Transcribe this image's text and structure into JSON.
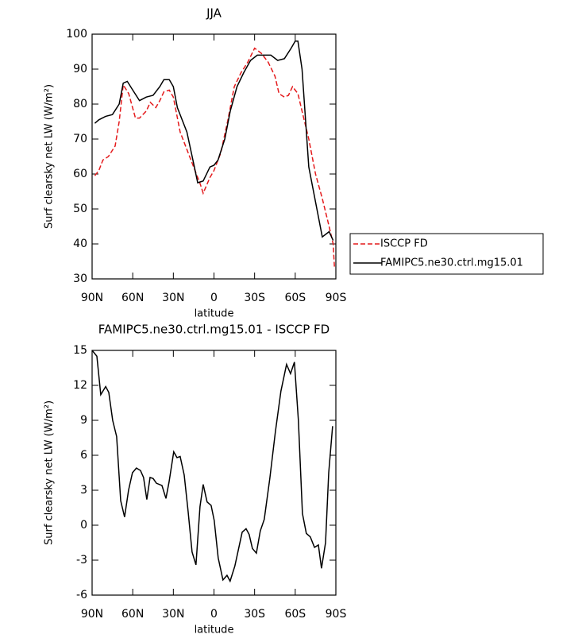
{
  "chart_data": [
    {
      "type": "line",
      "title": "JJA",
      "xlabel": "latitude",
      "ylabel": "Surf clearsky net LW (W/m²)",
      "xlim": [
        90,
        -90
      ],
      "xticks": [
        {
          "value": 90,
          "label": "90N"
        },
        {
          "value": 60,
          "label": "60N"
        },
        {
          "value": 30,
          "label": "30N"
        },
        0,
        {
          "value": -30,
          "label": "30S"
        },
        {
          "value": -60,
          "label": "60S"
        },
        {
          "value": -90,
          "label": "90S"
        }
      ],
      "ylim": [
        30,
        100
      ],
      "yticks": [
        30,
        40,
        50,
        60,
        70,
        80,
        90,
        100
      ],
      "legend": "right",
      "series": [
        {
          "name": "ISCCP FD",
          "color": "#e41a1c",
          "style": "dashed",
          "x": [
            88,
            85,
            82,
            78,
            73,
            70,
            67,
            63,
            58,
            55,
            50,
            47,
            43,
            40,
            37,
            33,
            30,
            25,
            20,
            15,
            10,
            8,
            3,
            0,
            -5,
            -10,
            -15,
            -20,
            -25,
            -30,
            -35,
            -40,
            -45,
            -48,
            -52,
            -55,
            -58,
            -62,
            -65,
            -70,
            -75,
            -80,
            -85,
            -88,
            -89
          ],
          "values": [
            59.5,
            61,
            64,
            65,
            68,
            75,
            85.5,
            83,
            76,
            76,
            78,
            80.5,
            79,
            81,
            83.5,
            84,
            82,
            72,
            67,
            62,
            57,
            54.5,
            59,
            61,
            66,
            75,
            85,
            89,
            92,
            96,
            94.5,
            92,
            88,
            83,
            82,
            82.5,
            85,
            83,
            78,
            70,
            60,
            53,
            45,
            40,
            33
          ]
        },
        {
          "name": "FAMIPC5.ne30.ctrl.mg15.01",
          "color": "#000000",
          "style": "solid",
          "x": [
            88,
            85,
            80,
            75,
            70,
            67,
            64,
            60,
            55,
            50,
            45,
            40,
            37,
            33,
            30,
            27,
            20,
            15,
            12,
            8,
            3,
            0,
            -3,
            -8,
            -12,
            -17,
            -22,
            -27,
            -32,
            -37,
            -42,
            -47,
            -52,
            -57,
            -60,
            -62,
            -65,
            -70,
            -75,
            -80,
            -85,
            -88
          ],
          "values": [
            74.5,
            75.5,
            76.5,
            77,
            80,
            86,
            86.5,
            84,
            81,
            82,
            82.5,
            85,
            87,
            87,
            85,
            79,
            72,
            63,
            57.5,
            58,
            62,
            62.5,
            64,
            70,
            78,
            85,
            89,
            92.5,
            94,
            94,
            94,
            92.5,
            93,
            96,
            98,
            98,
            90,
            62,
            52,
            42,
            43.5,
            41
          ]
        }
      ]
    },
    {
      "type": "line",
      "title": "FAMIPC5.ne30.ctrl.mg15.01 - ISCCP FD",
      "xlabel": "latitude",
      "ylabel": "Surf clearsky net LW (W/m²)",
      "xlim": [
        90,
        -90
      ],
      "xticks": [
        {
          "value": 90,
          "label": "90N"
        },
        {
          "value": 60,
          "label": "60N"
        },
        {
          "value": 30,
          "label": "30N"
        },
        0,
        {
          "value": -30,
          "label": "30S"
        },
        {
          "value": -60,
          "label": "60S"
        },
        {
          "value": -90,
          "label": "90S"
        }
      ],
      "ylim": [
        -6,
        15
      ],
      "yticks": [
        -6,
        -3,
        0,
        3,
        6,
        9,
        12,
        15
      ],
      "x": [
        90,
        86.5,
        83.6,
        80,
        77.7,
        74.8,
        71.9,
        68.9,
        66,
        63.1,
        60.2,
        57.3,
        54.3,
        52,
        49.6,
        47.2,
        44.9,
        42.5,
        38.4,
        35.5,
        33.2,
        29.7,
        27.3,
        25,
        22,
        19.1,
        16.2,
        13.3,
        10.3,
        8,
        5.1,
        2.1,
        -0.2,
        -3.1,
        -6.6,
        -9.6,
        -11.9,
        -15.4,
        -20.8,
        -23.7,
        -26,
        -28.4,
        -31.3,
        -34.2,
        -37.1,
        -41.2,
        -45.3,
        -49.4,
        -53.6,
        -56.5,
        -59.4,
        -62.3,
        -65.3,
        -68.2,
        -71.1,
        -74.2,
        -77.1,
        -79.4,
        -82.4,
        -84.7,
        -87.6
      ],
      "series": [
        {
          "color": "#000000",
          "style": "solid",
          "values": [
            15,
            14.5,
            11.2,
            11.9,
            11.4,
            9,
            7.6,
            2.1,
            0.7,
            3,
            4.5,
            4.9,
            4.7,
            4.1,
            2.2,
            4.1,
            4,
            3.6,
            3.4,
            2.3,
            3.7,
            6.3,
            5.8,
            5.9,
            4.3,
            1.2,
            -2.3,
            -3.4,
            1.6,
            3.5,
            2,
            1.7,
            0.4,
            -2.8,
            -4.7,
            -4.3,
            -4.8,
            -3.5,
            -0.6,
            -0.3,
            -0.8,
            -2,
            -2.4,
            -0.5,
            0.5,
            4,
            8,
            11.5,
            13.8,
            13,
            14,
            9,
            1,
            -0.7,
            -1,
            -1.9,
            -1.7,
            -3.7,
            -1.5,
            4.5,
            8.5
          ]
        }
      ]
    }
  ]
}
